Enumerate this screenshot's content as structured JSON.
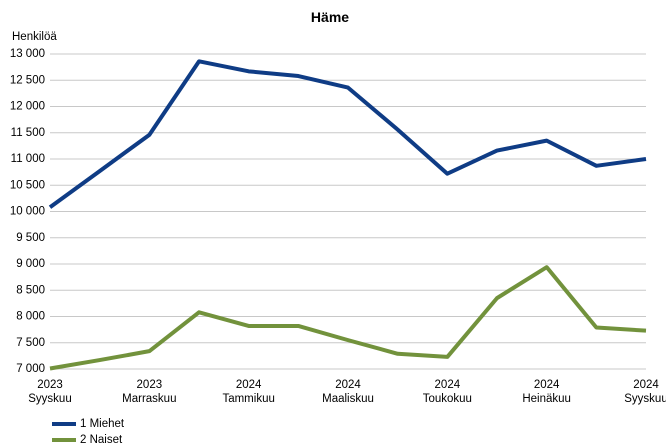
{
  "chart_data": {
    "type": "line",
    "title": "Häme",
    "ylabel": "Henkilöä",
    "xlabel": "",
    "ylim": [
      7000,
      13000
    ],
    "yticks": [
      7000,
      7500,
      8000,
      8500,
      9000,
      9500,
      10000,
      10500,
      11000,
      11500,
      12000,
      12500,
      13000
    ],
    "ytick_labels": [
      "7 000",
      "7 500",
      "8 000",
      "8 500",
      "9 000",
      "9 500",
      "10 000",
      "10 500",
      "11 000",
      "11 500",
      "12 000",
      "12 500",
      "13 000"
    ],
    "categories": [
      "2023-09",
      "2023-10",
      "2023-11",
      "2023-12",
      "2024-01",
      "2024-02",
      "2024-03",
      "2024-04",
      "2024-05",
      "2024-06",
      "2024-07",
      "2024-08",
      "2024-09"
    ],
    "x_tick_labels": [
      {
        "year": "2023",
        "month": "Syyskuu"
      },
      {
        "year": "2023",
        "month": "Marraskuu"
      },
      {
        "year": "2024",
        "month": "Tammikuu"
      },
      {
        "year": "2024",
        "month": "Maaliskuu"
      },
      {
        "year": "2024",
        "month": "Toukokuu"
      },
      {
        "year": "2024",
        "month": "Heinäkuu"
      },
      {
        "year": "2024",
        "month": "Syyskuu"
      }
    ],
    "grid": true,
    "legend_position": "bottom-left",
    "series": [
      {
        "name": "1 Miehet",
        "color": "#0f3c85",
        "values": [
          10080,
          10770,
          11460,
          12860,
          12670,
          12580,
          12360,
          11560,
          10720,
          11160,
          11350,
          10870,
          11000
        ]
      },
      {
        "name": "2 Naiset",
        "color": "#72923c",
        "values": [
          7010,
          7170,
          7340,
          8080,
          7820,
          7820,
          7550,
          7290,
          7230,
          8350,
          8940,
          7790,
          7730
        ]
      }
    ]
  }
}
